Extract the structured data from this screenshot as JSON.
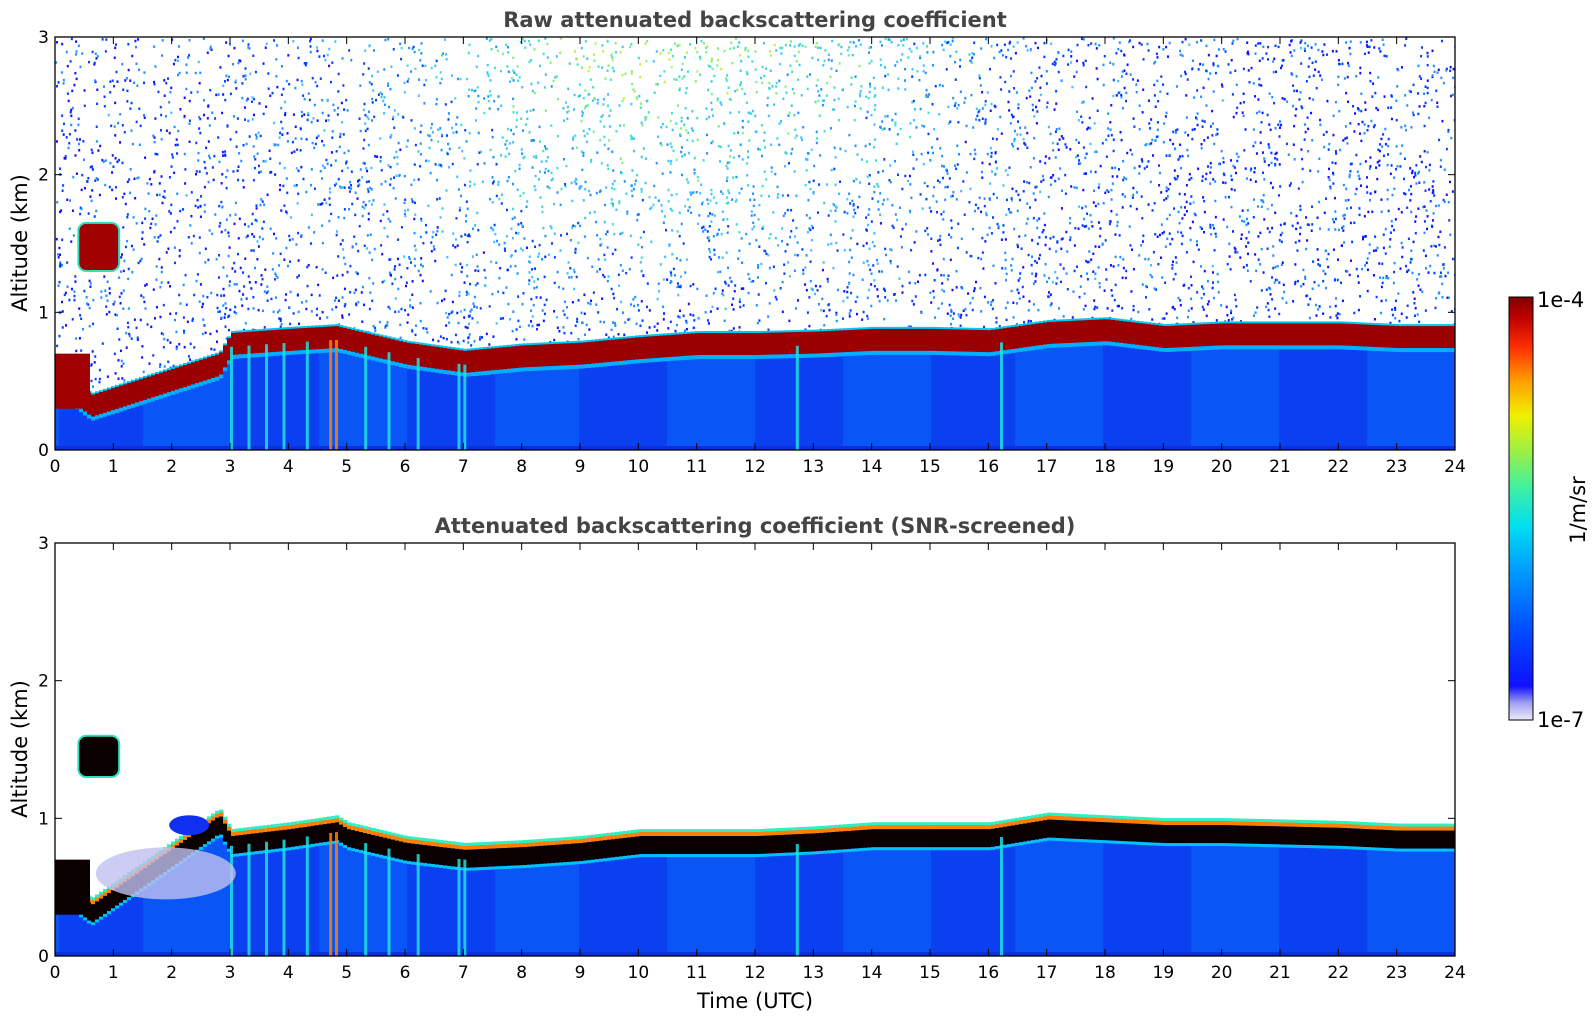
{
  "chart_data": [
    {
      "type": "heatmap",
      "title": "Raw attenuated backscattering coefficient",
      "xlabel": "",
      "ylabel": "Altitude (km)",
      "xlim": [
        0,
        24
      ],
      "ylim": [
        0,
        3
      ],
      "xticks": [
        "0",
        "1",
        "2",
        "3",
        "4",
        "5",
        "6",
        "7",
        "8",
        "9",
        "10",
        "11",
        "12",
        "13",
        "14",
        "15",
        "16",
        "17",
        "18",
        "19",
        "20",
        "21",
        "22",
        "23",
        "24"
      ],
      "yticks": [
        "0",
        "1",
        "2",
        "3"
      ],
      "color_scale": "log",
      "layer_top_km": {
        "time_utc": [
          0,
          0.6,
          2.8,
          3,
          4,
          4.8,
          5,
          6,
          7,
          8,
          9,
          10,
          11,
          12,
          13,
          14,
          15,
          16,
          17,
          18,
          19,
          20,
          21,
          22,
          23,
          24
        ],
        "altitude_km": [
          0.6,
          0.4,
          0.7,
          0.85,
          0.88,
          0.9,
          0.88,
          0.78,
          0.72,
          0.76,
          0.78,
          0.82,
          0.85,
          0.85,
          0.86,
          0.88,
          0.88,
          0.87,
          0.93,
          0.95,
          0.9,
          0.92,
          0.92,
          0.92,
          0.9,
          0.9
        ]
      },
      "features": {
        "elevated_layer": {
          "time_utc": [
            0.4,
            1.1
          ],
          "altitude_km": [
            1.3,
            1.65
          ]
        },
        "noisy_region_above_layer": true
      }
    },
    {
      "type": "heatmap",
      "title": "Attenuated backscattering coefficient (SNR-screened)",
      "xlabel": "Time (UTC)",
      "ylabel": "Altitude (km)",
      "xlim": [
        0,
        24
      ],
      "ylim": [
        0,
        3
      ],
      "xticks": [
        "0",
        "1",
        "2",
        "3",
        "4",
        "5",
        "6",
        "7",
        "8",
        "9",
        "10",
        "11",
        "12",
        "13",
        "14",
        "15",
        "16",
        "17",
        "18",
        "19",
        "20",
        "21",
        "22",
        "23",
        "24"
      ],
      "yticks": [
        "0",
        "1",
        "2",
        "3"
      ],
      "color_scale": "log",
      "layer_top_km": {
        "time_utc": [
          0,
          0.6,
          2.8,
          3,
          4,
          4.8,
          5,
          6,
          7,
          8,
          9,
          10,
          11,
          12,
          13,
          14,
          15,
          16,
          17,
          18,
          19,
          20,
          21,
          22,
          23,
          24
        ],
        "altitude_km": [
          0.6,
          0.4,
          1.05,
          0.9,
          0.95,
          1.0,
          0.95,
          0.85,
          0.8,
          0.82,
          0.85,
          0.9,
          0.9,
          0.9,
          0.92,
          0.95,
          0.95,
          0.95,
          1.02,
          1.0,
          0.98,
          0.98,
          0.97,
          0.96,
          0.94,
          0.94
        ]
      },
      "features": {
        "elevated_layer": {
          "time_utc": [
            0.4,
            1.1
          ],
          "altitude_km": [
            1.3,
            1.6
          ]
        },
        "noisy_region_above_layer": false
      }
    }
  ],
  "colorbar": {
    "label": "1/m/sr",
    "max_label": "1e-4",
    "min_label": "1e-7",
    "colors": [
      "#e8e8f8",
      "#8080f0",
      "#0000ff",
      "#0050ff",
      "#00a0ff",
      "#00e0f0",
      "#40f0a0",
      "#a0f040",
      "#f0f000",
      "#ffa000",
      "#ff4000",
      "#c00000",
      "#800000"
    ]
  }
}
